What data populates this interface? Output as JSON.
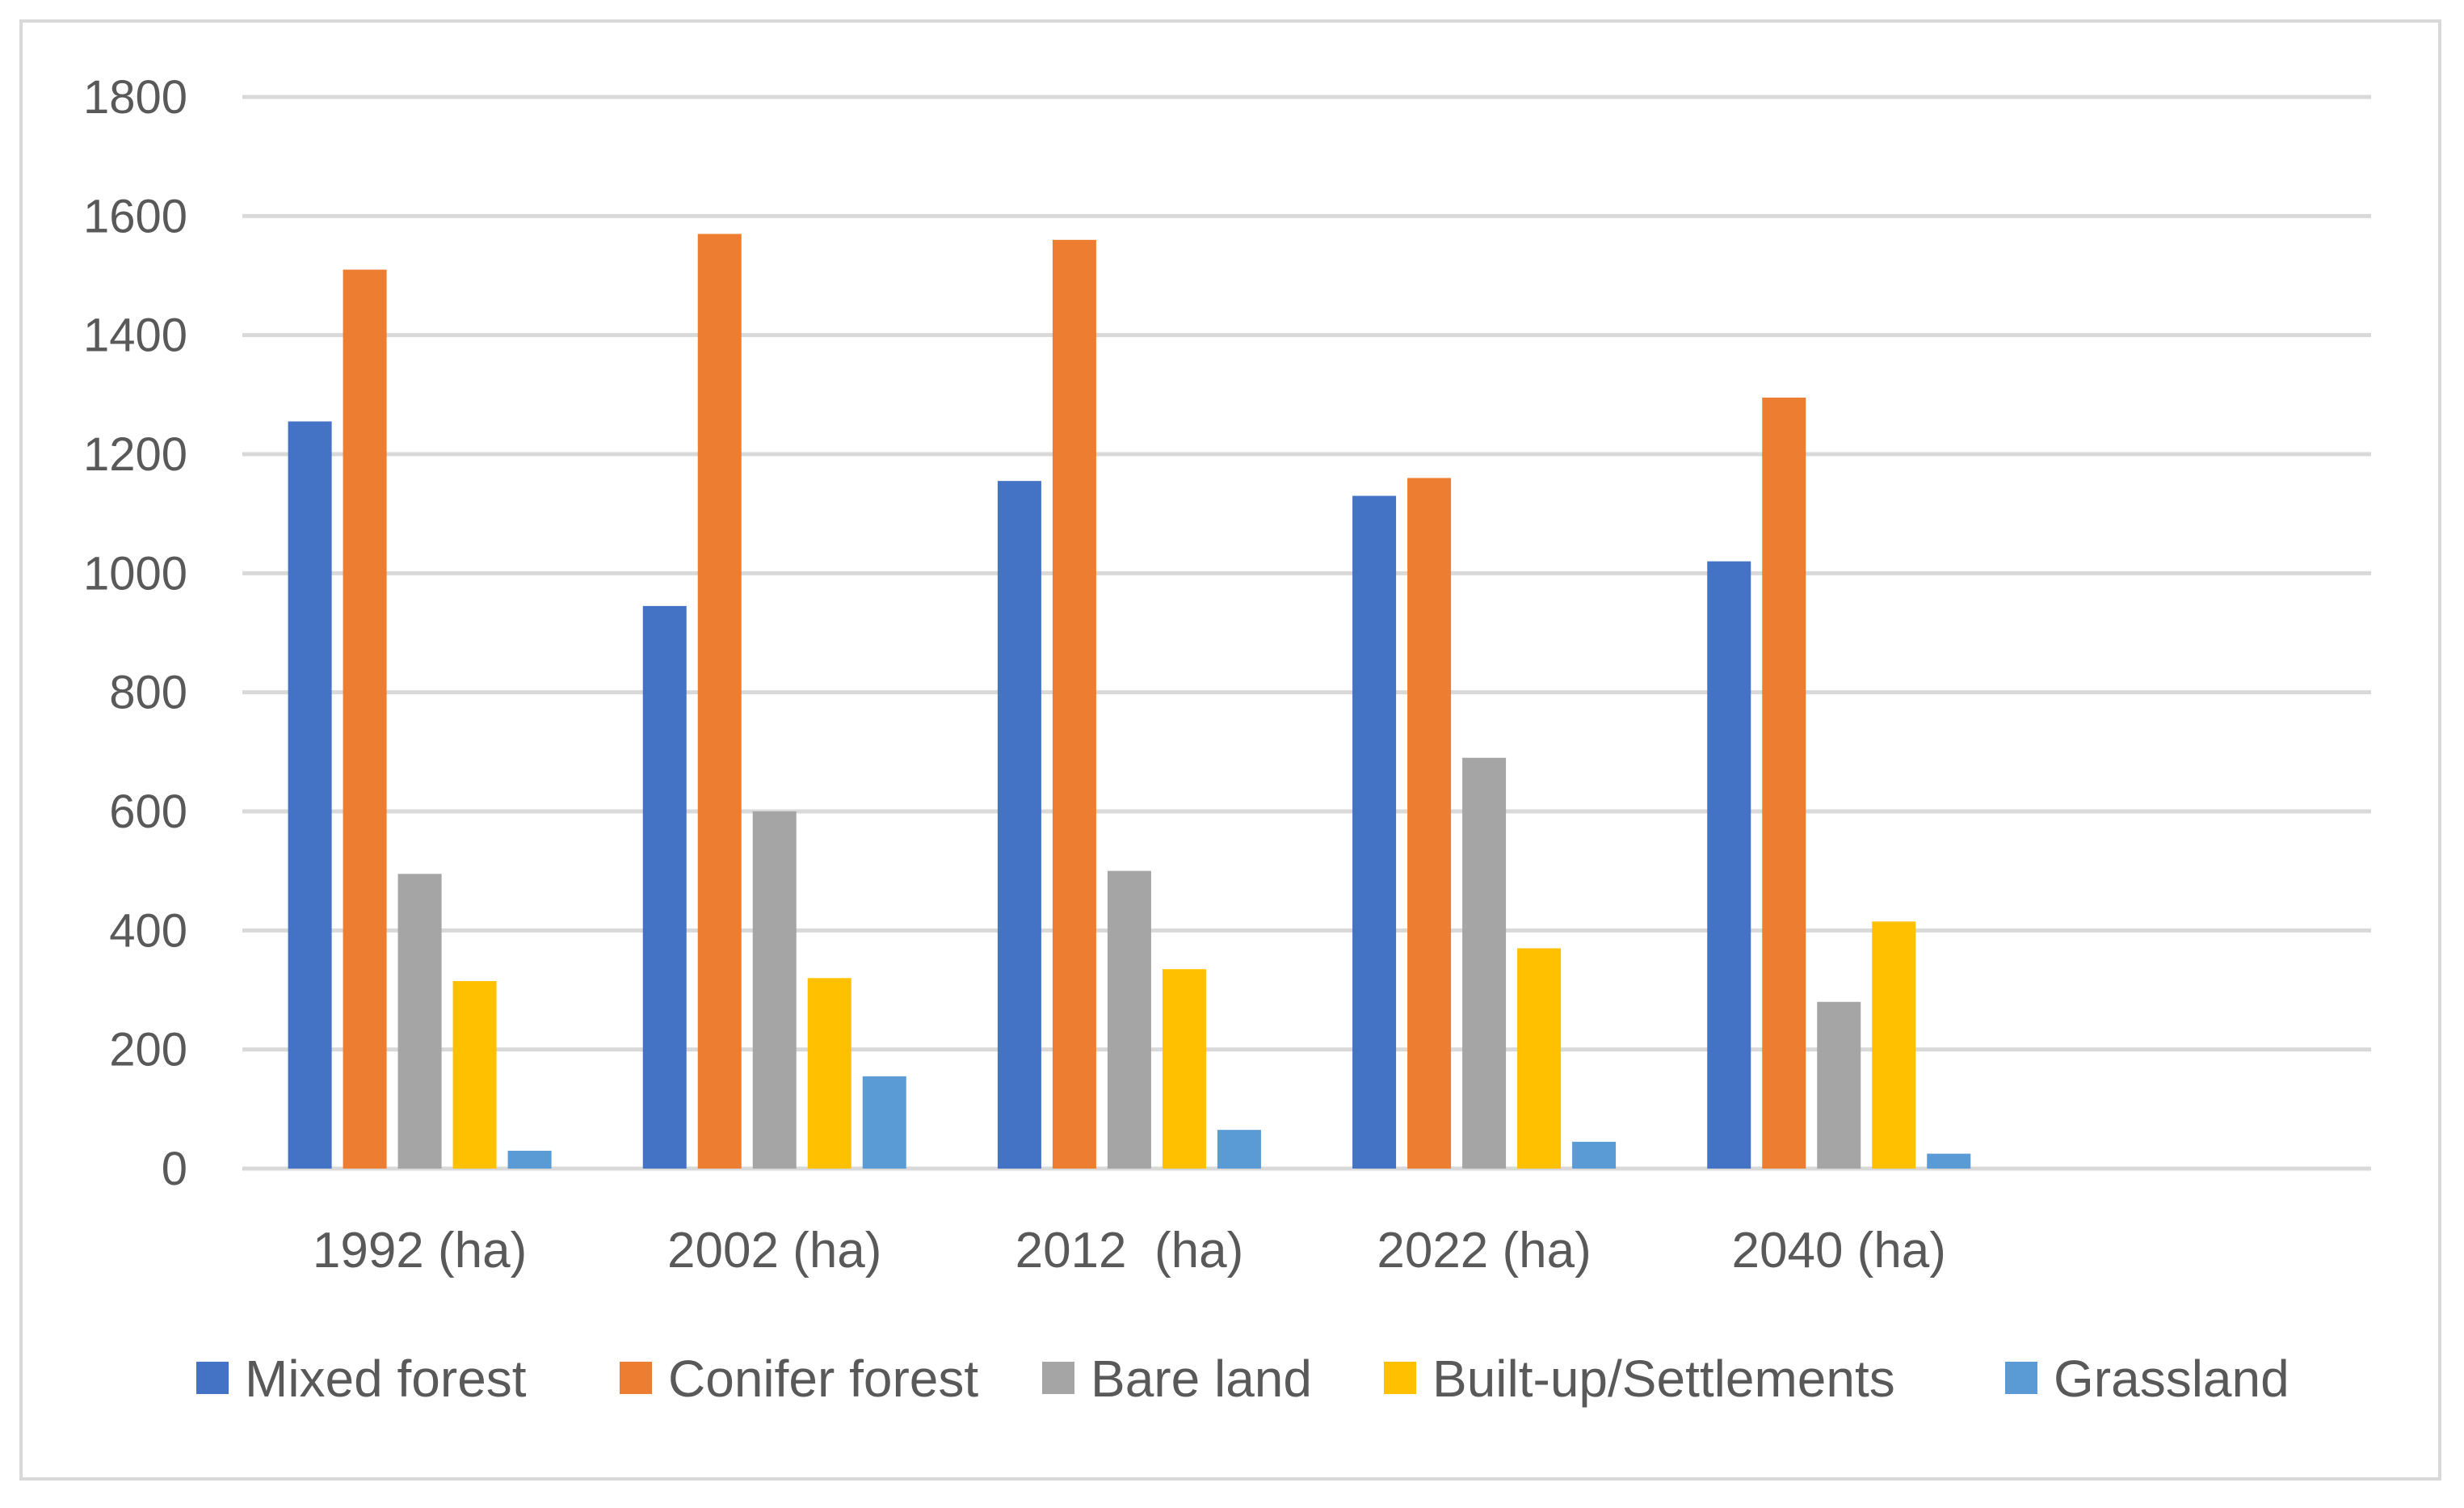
{
  "chart_data": {
    "type": "bar",
    "title": "",
    "xlabel": "",
    "ylabel": "",
    "ylim": [
      0,
      1800
    ],
    "yticks": [
      0,
      200,
      400,
      600,
      800,
      1000,
      1200,
      1400,
      1600,
      1800
    ],
    "grid": true,
    "legend_position": "bottom",
    "categories": [
      "1992 (ha)",
      "2002 (ha)",
      "2012  (ha)",
      "2022 (ha)",
      "2040 (ha)",
      ""
    ],
    "series": [
      {
        "name": "Mixed forest",
        "color": "#4472C4",
        "values": [
          1255,
          945,
          1155,
          1130,
          1020,
          null
        ]
      },
      {
        "name": "Conifer forest",
        "color": "#ED7D31",
        "values": [
          1510,
          1570,
          1560,
          1160,
          1295,
          null
        ]
      },
      {
        "name": "Bare land",
        "color": "#A5A5A5",
        "values": [
          495,
          600,
          500,
          690,
          280,
          null
        ]
      },
      {
        "name": "Built-up/Settlements",
        "color": "#FFC000",
        "values": [
          315,
          320,
          335,
          370,
          415,
          null
        ]
      },
      {
        "name": "Grassland",
        "color": "#5B9BD5",
        "values": [
          30,
          155,
          65,
          45,
          25,
          null
        ]
      }
    ]
  }
}
